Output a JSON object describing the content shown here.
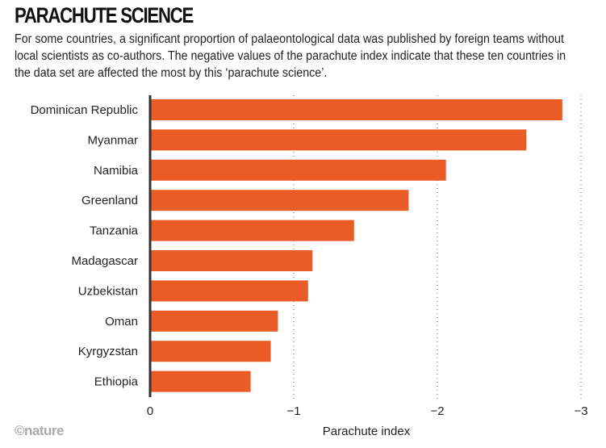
{
  "title": "PARACHUTE SCIENCE",
  "subtitle": "For some countries, a significant proportion of palaeontological data was published by foreign teams without local scientists as co-authors. The negative values of the parachute index indicate that these ten countries in the data set are affected the most by this ‘parachute science’.",
  "credit": "©nature",
  "colors": {
    "bar": "#EA5B25",
    "axis": "#333333",
    "grid": "#666666"
  },
  "chart_data": {
    "type": "bar",
    "orientation": "horizontal",
    "title": "PARACHUTE SCIENCE",
    "xlabel": "Parachute index",
    "ylabel": "",
    "xlim": [
      0,
      -3
    ],
    "xticks": [
      0,
      -1,
      -2,
      -3
    ],
    "xtick_labels": [
      "0",
      "−1",
      "−2",
      "−3"
    ],
    "grid": "vertical dotted",
    "categories": [
      "Dominican Republic",
      "Myanmar",
      "Namibia",
      "Greenland",
      "Tanzania",
      "Madagascar",
      "Uzbekistan",
      "Oman",
      "Kyrgyzstan",
      "Ethiopia"
    ],
    "values": [
      -2.87,
      -2.62,
      -2.06,
      -1.8,
      -1.42,
      -1.13,
      -1.1,
      -0.89,
      -0.84,
      -0.7
    ]
  }
}
